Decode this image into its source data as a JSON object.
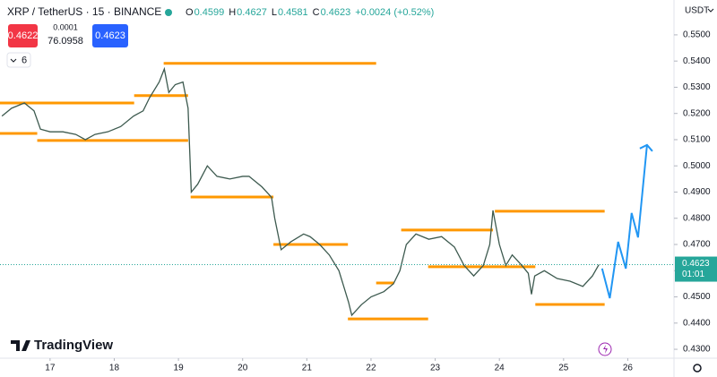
{
  "chart_data": {
    "type": "line",
    "title": "XRP / TetherUS · 15 · BINANCE",
    "ohlc": [
      {
        "label": "O",
        "value": 0.4599
      },
      {
        "label": "H",
        "value": 0.4627
      },
      {
        "label": "L",
        "value": 0.4581
      },
      {
        "label": "C",
        "value": 0.4623
      }
    ],
    "change": "+0.0024 (+0.52%)",
    "bid": 0.4622,
    "spread": 0.0001,
    "size": 76.0958,
    "ask": 0.4623,
    "indicator_count": 6,
    "currency": "USDT",
    "brand": "TradingView",
    "last_price": 0.4623,
    "countdown": "01:01",
    "color": "#3d5a4f",
    "x": [
      16.25,
      16.4,
      16.6,
      16.75,
      16.85,
      17.0,
      17.2,
      17.4,
      17.55,
      17.7,
      17.9,
      18.1,
      18.3,
      18.45,
      18.55,
      18.7,
      18.78,
      18.85,
      18.95,
      19.07,
      19.15,
      19.2,
      19.3,
      19.45,
      19.6,
      19.8,
      20.0,
      20.1,
      20.3,
      20.45,
      20.5,
      20.6,
      20.75,
      20.95,
      21.05,
      21.2,
      21.35,
      21.5,
      21.65,
      21.7,
      21.85,
      22.0,
      22.2,
      22.35,
      22.45,
      22.55,
      22.7,
      22.9,
      23.1,
      23.3,
      23.45,
      23.6,
      23.75,
      23.85,
      23.9,
      24.0,
      24.1,
      24.2,
      24.35,
      24.45,
      24.5,
      24.55,
      24.7,
      24.9,
      25.1,
      25.3,
      25.45,
      25.55
    ],
    "values": [
      0.519,
      0.522,
      0.524,
      0.521,
      0.514,
      0.513,
      0.513,
      0.512,
      0.51,
      0.512,
      0.513,
      0.515,
      0.519,
      0.521,
      0.526,
      0.532,
      0.537,
      0.528,
      0.531,
      0.532,
      0.522,
      0.49,
      0.493,
      0.5,
      0.496,
      0.495,
      0.496,
      0.496,
      0.492,
      0.488,
      0.48,
      0.468,
      0.471,
      0.474,
      0.473,
      0.47,
      0.466,
      0.46,
      0.448,
      0.443,
      0.447,
      0.45,
      0.452,
      0.455,
      0.46,
      0.47,
      0.474,
      0.472,
      0.473,
      0.469,
      0.462,
      0.458,
      0.462,
      0.47,
      0.483,
      0.47,
      0.462,
      0.466,
      0.462,
      0.459,
      0.451,
      0.458,
      0.46,
      0.457,
      0.456,
      0.454,
      0.458,
      0.4623
    ],
    "forecast": {
      "color": "#2196f3",
      "x": [
        25.6,
        25.72,
        25.85,
        25.97,
        26.06,
        26.16,
        26.3
      ],
      "values": [
        0.4608,
        0.4495,
        0.471,
        0.4608,
        0.482,
        0.4727,
        0.508
      ]
    },
    "levels_color": "#ff9800",
    "levels": [
      {
        "x": [
          16.22,
          18.31
        ],
        "value": 0.524
      },
      {
        "x": [
          16.22,
          16.8
        ],
        "value": 0.5124
      },
      {
        "x": [
          16.8,
          19.15
        ],
        "value": 0.5097
      },
      {
        "x": [
          18.31,
          19.15
        ],
        "value": 0.5268
      },
      {
        "x": [
          18.77,
          22.08
        ],
        "value": 0.5391
      },
      {
        "x": [
          19.19,
          20.48
        ],
        "value": 0.4881
      },
      {
        "x": [
          20.48,
          21.64
        ],
        "value": 0.47
      },
      {
        "x": [
          21.64,
          22.89
        ],
        "value": 0.4416
      },
      {
        "x": [
          22.08,
          22.36
        ],
        "value": 0.4553
      },
      {
        "x": [
          22.47,
          23.9
        ],
        "value": 0.4755
      },
      {
        "x": [
          22.89,
          24.56
        ],
        "value": 0.4615
      },
      {
        "x": [
          23.93,
          25.64
        ],
        "value": 0.4827
      },
      {
        "x": [
          24.56,
          25.64
        ],
        "value": 0.4471
      }
    ],
    "xlim": [
      16.22,
      26.72
    ],
    "xticks": [
      17,
      18,
      19,
      20,
      21,
      22,
      23,
      24,
      25,
      26
    ],
    "ylim": [
      0.4266,
      0.5633
    ],
    "yticks": [
      {
        "value": 0.43,
        "label": "0.4300"
      },
      {
        "value": 0.44,
        "label": "0.4400"
      },
      {
        "value": 0.45,
        "label": "0.4500"
      },
      {
        "value": 0.46,
        "label": "0.4600"
      },
      {
        "value": 0.47,
        "label": "0.4700"
      },
      {
        "value": 0.48,
        "label": "0.4800"
      },
      {
        "value": 0.49,
        "label": "0.4900"
      },
      {
        "value": 0.5,
        "label": "0.5000"
      },
      {
        "value": 0.51,
        "label": "0.5100"
      },
      {
        "value": 0.52,
        "label": "0.5200"
      },
      {
        "value": 0.53,
        "label": "0.5300"
      },
      {
        "value": 0.54,
        "label": "0.5400"
      },
      {
        "value": 0.55,
        "label": "0.5500"
      }
    ]
  }
}
